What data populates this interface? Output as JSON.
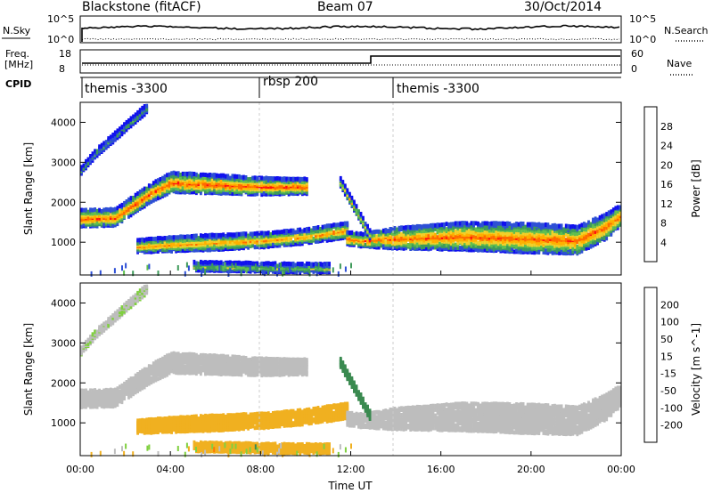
{
  "header": {
    "station": "Blackstone (fitACF)",
    "beam": "Beam 07",
    "date": "30/Oct/2014"
  },
  "top_panels": {
    "nsky_label": "N.Sky",
    "nsearch_label": "N.Search",
    "left_ticks": [
      "10^5",
      "10^0"
    ],
    "right_ticks": [
      "10^5",
      "10^0"
    ],
    "freq_label": "Freq.",
    "freq_unit": "[MHz]",
    "freq_ticks": [
      "18",
      "8"
    ],
    "nave_label": "Nave",
    "nave_ticks": [
      "60",
      "0"
    ],
    "cpid_label": "CPID",
    "cpid_segments": [
      {
        "label": "themis -3300",
        "start_hour": 0.0
      },
      {
        "label": "rbsp 200",
        "start_hour": 8.0
      },
      {
        "label": "themis -3300",
        "start_hour": 14.0
      }
    ]
  },
  "x_axis": {
    "label": "Time UT",
    "ticks": [
      "00:00",
      "04:00",
      "08:00",
      "12:00",
      "16:00",
      "20:00",
      "00:00"
    ]
  },
  "power_panel": {
    "ylabel": "Slant Range [km]",
    "colorbar_label": "Power [dB]",
    "colorbar_ticks": [
      "28",
      "24",
      "20",
      "16",
      "12",
      "8",
      "4"
    ],
    "colors": [
      "#ff1010",
      "#ff6a00",
      "#ffb000",
      "#f2d02a",
      "#5fbf50",
      "#3e9a5a",
      "#2d4fd6",
      "#1010ee"
    ]
  },
  "velocity_panel": {
    "ylabel": "Slant Range [km]",
    "colorbar_label": "Velocity [m s^-1]",
    "colorbar_ticks": [
      "200",
      "100",
      "50",
      "15",
      "-15",
      "-50",
      "-100",
      "-200"
    ],
    "colors": [
      "#2040d0",
      "#3a8a50",
      "#80d040",
      "#bdbdbd",
      "#f0b020",
      "#ff7a00",
      "#ff2a10"
    ]
  },
  "y_axis_ticks": [
    "4000",
    "3000",
    "2000",
    "1000"
  ],
  "chart_data": {
    "type": "heatmap",
    "x_range_hours": [
      0,
      24
    ],
    "ylim": [
      180,
      4500
    ],
    "ylabel": "Slant Range [km]",
    "xlabel": "Time UT",
    "scatter_bands": [
      {
        "name": "band-a",
        "t": [
          0.0,
          1.5,
          3.0,
          4.0,
          6.0,
          8.0,
          10.0
        ],
        "center_km": [
          1600,
          1620,
          2200,
          2500,
          2450,
          2400,
          2400
        ],
        "half_width_km": [
          200,
          200,
          220,
          230,
          220,
          200,
          180
        ],
        "peak_power_db": 26,
        "velocity": -5
      },
      {
        "name": "band-b",
        "t": [
          2.5,
          4.0,
          6.0,
          8.0,
          10.0,
          11.8
        ],
        "center_km": [
          900,
          950,
          1000,
          1050,
          1150,
          1300
        ],
        "half_width_km": [
          150,
          170,
          180,
          170,
          170,
          180
        ],
        "peak_power_db": 22,
        "velocity": -40
      },
      {
        "name": "band-c",
        "t": [
          11.8,
          12.5,
          14.0,
          17.0,
          20.0,
          22.0,
          23.3,
          24.0
        ],
        "center_km": [
          1100,
          1050,
          1100,
          1150,
          1100,
          1050,
          1400,
          1700
        ],
        "half_width_km": [
          150,
          150,
          250,
          330,
          350,
          330,
          300,
          250
        ],
        "peak_power_db": 25,
        "velocity": -5
      },
      {
        "name": "band-d",
        "t": [
          0.0,
          0.6,
          1.2,
          1.8,
          2.4,
          3.0
        ],
        "center_km": [
          2800,
          3200,
          3500,
          3800,
          4100,
          4400
        ],
        "half_width_km": [
          80,
          80,
          90,
          90,
          100,
          100
        ],
        "peak_power_db": 10,
        "velocity": 10
      },
      {
        "name": "band-e",
        "t": [
          5.0,
          7.0,
          9.0,
          11.0
        ],
        "center_km": [
          400,
          380,
          360,
          350
        ],
        "half_width_km": [
          100,
          100,
          100,
          100
        ],
        "peak_power_db": 14,
        "velocity": -40
      },
      {
        "name": "band-f",
        "t": [
          11.5,
          12.2,
          12.8
        ],
        "center_km": [
          2500,
          1800,
          1200
        ],
        "half_width_km": [
          100,
          100,
          100
        ],
        "peak_power_db": 18,
        "velocity": 60
      }
    ]
  }
}
